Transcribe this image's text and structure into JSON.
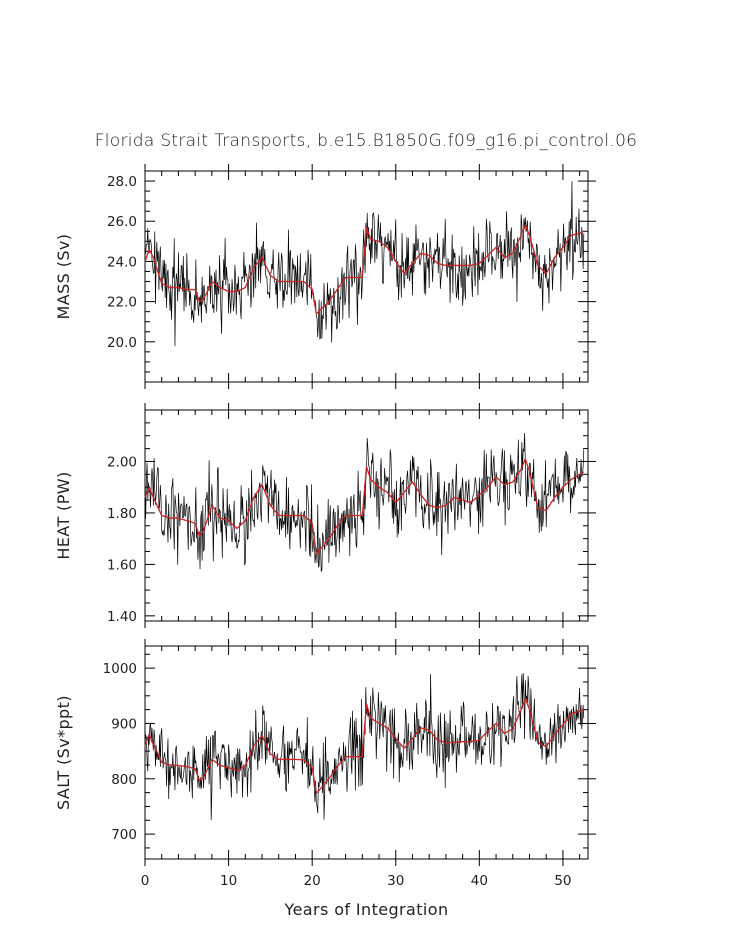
{
  "chart_data": [
    {
      "type": "line",
      "title": "Florida Strait Transports, b.e15.B1850G.f09_g16.pi_control.06",
      "xlabel": "",
      "ylabel": "MASS (Sv)",
      "xlim": [
        0,
        53
      ],
      "ylim": [
        18.0,
        28.5
      ],
      "x_ticks": [
        0,
        10,
        20,
        30,
        40,
        50
      ],
      "y_ticks": [
        20.0,
        22.0,
        24.0,
        26.0,
        28.0
      ],
      "y_tick_labels": [
        "20.0",
        "22.0",
        "24.0",
        "26.0",
        "28.0"
      ],
      "raw_style": {
        "color": "#000000",
        "noise": 1.05
      },
      "smooth_style": {
        "color": "#cc2222"
      },
      "series": [
        {
          "x": [
            0,
            0.5,
            1,
            2,
            3,
            4,
            5,
            6,
            6.5,
            7,
            8,
            9,
            10,
            11,
            12,
            13,
            14,
            15,
            16,
            17,
            18,
            19,
            20,
            20.5,
            21,
            22,
            23,
            24,
            25,
            26,
            26.5,
            27,
            28,
            29,
            30,
            31,
            32,
            33,
            34,
            35,
            36,
            37,
            38,
            39,
            40,
            41,
            42,
            43,
            44,
            45,
            45.5,
            46,
            47,
            48,
            49,
            50,
            51,
            52,
            52.5
          ],
          "values": [
            24.0,
            24.6,
            24.2,
            22.9,
            22.7,
            22.7,
            22.6,
            22.6,
            22.0,
            22.1,
            23.0,
            22.7,
            22.5,
            22.5,
            22.7,
            23.7,
            24.2,
            23.3,
            23.0,
            23.0,
            23.0,
            23.0,
            22.6,
            21.4,
            21.6,
            22.0,
            22.6,
            23.2,
            23.2,
            23.2,
            25.7,
            25.1,
            25.0,
            24.7,
            24.0,
            23.4,
            23.9,
            24.4,
            24.3,
            23.9,
            23.8,
            23.8,
            23.8,
            23.8,
            23.9,
            24.3,
            24.7,
            24.2,
            24.4,
            25.3,
            25.8,
            25.3,
            23.8,
            23.4,
            24.2,
            24.7,
            25.3,
            25.4,
            25.5
          ]
        }
      ]
    },
    {
      "type": "line",
      "title": "",
      "xlabel": "",
      "ylabel": "HEAT (PW)",
      "xlim": [
        0,
        53
      ],
      "ylim": [
        1.38,
        2.2
      ],
      "x_ticks": [
        0,
        10,
        20,
        30,
        40,
        50
      ],
      "y_ticks": [
        1.4,
        1.6,
        1.8,
        2.0
      ],
      "y_tick_labels": [
        "1.40",
        "1.60",
        "1.80",
        "2.00"
      ],
      "raw_style": {
        "color": "#000000",
        "noise": 0.085
      },
      "smooth_style": {
        "color": "#cc2222"
      },
      "series": [
        {
          "x": [
            0,
            0.5,
            1,
            2,
            3,
            4,
            5,
            6,
            6.5,
            7,
            8,
            9,
            10,
            11,
            12,
            13,
            14,
            15,
            16,
            17,
            18,
            19,
            20,
            20.5,
            21,
            22,
            23,
            24,
            25,
            26,
            26.5,
            27,
            28,
            29,
            30,
            31,
            32,
            33,
            34,
            35,
            36,
            37,
            38,
            39,
            40,
            41,
            42,
            43,
            44,
            45,
            45.5,
            46,
            47,
            48,
            49,
            50,
            51,
            52,
            52.5
          ],
          "values": [
            1.86,
            1.9,
            1.86,
            1.79,
            1.78,
            1.78,
            1.77,
            1.76,
            1.71,
            1.73,
            1.83,
            1.78,
            1.77,
            1.74,
            1.77,
            1.86,
            1.91,
            1.83,
            1.79,
            1.79,
            1.79,
            1.79,
            1.76,
            1.64,
            1.66,
            1.7,
            1.75,
            1.79,
            1.79,
            1.79,
            1.98,
            1.93,
            1.9,
            1.88,
            1.84,
            1.88,
            1.92,
            1.87,
            1.83,
            1.82,
            1.83,
            1.86,
            1.85,
            1.84,
            1.87,
            1.9,
            1.94,
            1.91,
            1.92,
            1.97,
            2.01,
            1.96,
            1.82,
            1.81,
            1.86,
            1.9,
            1.93,
            1.95,
            1.96
          ]
        }
      ]
    },
    {
      "type": "line",
      "title": "",
      "xlabel": "Years of Integration",
      "ylabel": "SALT (Sv*ppt)",
      "xlim": [
        0,
        53
      ],
      "ylim": [
        655,
        1040
      ],
      "x_ticks": [
        0,
        10,
        20,
        30,
        40,
        50
      ],
      "x_tick_labels": [
        "0",
        "10",
        "20",
        "30",
        "40",
        "50"
      ],
      "y_ticks": [
        700,
        800,
        900,
        1000
      ],
      "y_tick_labels": [
        "700",
        "800",
        "900",
        "1000"
      ],
      "raw_style": {
        "color": "#000000",
        "noise": 38
      },
      "smooth_style": {
        "color": "#cc2222"
      },
      "series": [
        {
          "x": [
            0,
            0.5,
            1,
            2,
            3,
            4,
            5,
            6,
            6.5,
            7,
            8,
            9,
            10,
            11,
            12,
            13,
            14,
            15,
            16,
            17,
            18,
            19,
            20,
            20.5,
            21,
            22,
            23,
            24,
            25,
            26,
            26.5,
            27,
            28,
            29,
            30,
            31,
            32,
            33,
            34,
            35,
            36,
            37,
            38,
            39,
            40,
            41,
            42,
            43,
            44,
            45,
            45.5,
            46,
            47,
            48,
            49,
            50,
            51,
            52,
            52.5
          ],
          "values": [
            860,
            880,
            862,
            830,
            825,
            824,
            822,
            818,
            797,
            802,
            835,
            824,
            820,
            815,
            823,
            860,
            878,
            845,
            835,
            835,
            835,
            834,
            820,
            774,
            782,
            800,
            822,
            840,
            840,
            840,
            935,
            910,
            900,
            892,
            873,
            855,
            873,
            892,
            888,
            870,
            865,
            866,
            867,
            867,
            870,
            886,
            900,
            882,
            890,
            925,
            945,
            925,
            866,
            858,
            880,
            898,
            918,
            922,
            925
          ]
        }
      ]
    }
  ]
}
